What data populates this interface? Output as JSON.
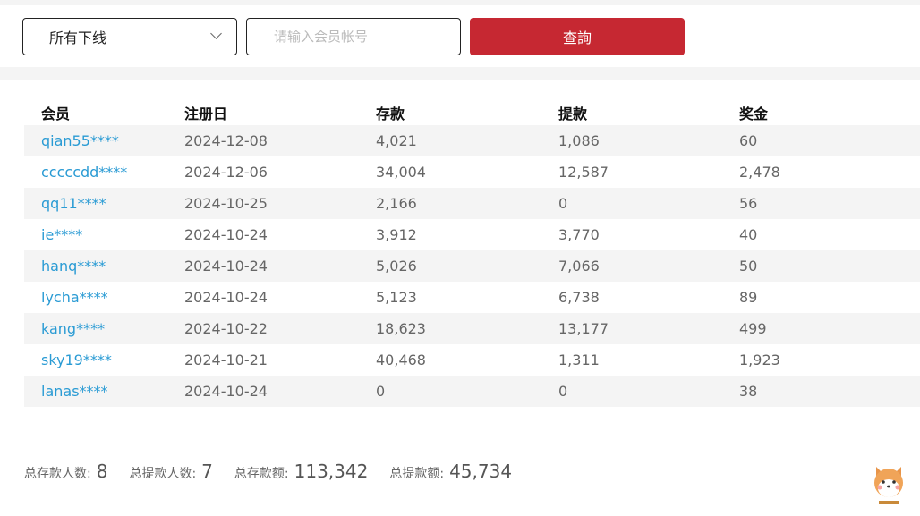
{
  "filter": {
    "selected": "所有下线",
    "placeholder": "请输入会员帐号",
    "query_label": "查詢"
  },
  "table": {
    "headers": [
      "会员",
      "注册日",
      "存款",
      "提款",
      "奖金"
    ],
    "rows": [
      [
        "qian55****",
        "2024-12-08",
        "4,021",
        "1,086",
        "60"
      ],
      [
        "cccccdd****",
        "2024-12-06",
        "34,004",
        "12,587",
        "2,478"
      ],
      [
        "qq11****",
        "2024-10-25",
        "2,166",
        "0",
        "56"
      ],
      [
        "ie****",
        "2024-10-24",
        "3,912",
        "3,770",
        "40"
      ],
      [
        "hanq****",
        "2024-10-24",
        "5,026",
        "7,066",
        "50"
      ],
      [
        "lycha****",
        "2024-10-24",
        "5,123",
        "6,738",
        "89"
      ],
      [
        "kang****",
        "2024-10-22",
        "18,623",
        "13,177",
        "499"
      ],
      [
        "sky19****",
        "2024-10-21",
        "40,468",
        "1,311",
        "1,923"
      ],
      [
        "lanas****",
        "2024-10-24",
        "0",
        "0",
        "38"
      ]
    ]
  },
  "summary": [
    {
      "label": "总存款人数:",
      "value": "8"
    },
    {
      "label": "总提款人数:",
      "value": "7"
    },
    {
      "label": "总存款额:",
      "value": "113,342"
    },
    {
      "label": "总提款额:",
      "value": "45,734"
    }
  ],
  "colors": {
    "accent": "#c62832",
    "link": "#2a9bd4"
  }
}
